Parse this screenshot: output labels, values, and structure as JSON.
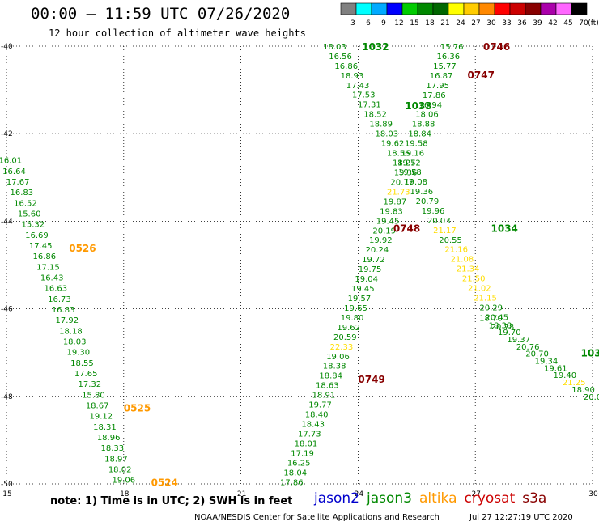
{
  "header": {
    "title": "00:00 – 11:59 UTC 07/26/2020",
    "subtitle": "12 hour collection of altimeter wave heights"
  },
  "footer": {
    "note": "note: 1) Time is in UTC; 2) SWH is in feet",
    "credit": "NOAA/NESDIS Center for Satellite Applications and Research",
    "timestamp": "Jul 27 12:27:19 UTC 2020"
  },
  "satellites": [
    {
      "name": "jason2",
      "color": "#0000cc"
    },
    {
      "name": "jason3",
      "color": "#008800"
    },
    {
      "name": "altika",
      "color": "#ff9900"
    },
    {
      "name": "cryosat",
      "color": "#cc0000"
    },
    {
      "name": "s3a",
      "color": "#880000"
    }
  ],
  "color_scale": {
    "labels": [
      "3",
      "6",
      "9",
      "12",
      "15",
      "18",
      "21",
      "24",
      "27",
      "30",
      "33",
      "36",
      "39",
      "42",
      "45",
      "70"
    ],
    "unit": "(ft)",
    "colors": [
      "#808080",
      "#00ffff",
      "#00aaff",
      "#0000ff",
      "#00cc00",
      "#008800",
      "#006600",
      "#ffff00",
      "#ffcc00",
      "#ff8800",
      "#ff0000",
      "#cc0000",
      "#880000",
      "#aa00aa",
      "#ff66ff",
      "#000000"
    ]
  },
  "chart_data": {
    "type": "scatter",
    "title": "00:00 – 11:59 UTC 07/26/2020",
    "xlabel": "",
    "ylabel": "",
    "xlim": [
      15,
      30
    ],
    "ylim": [
      -50,
      -40
    ],
    "x_ticks": [
      "15",
      "18",
      "21",
      "24",
      "27",
      "30"
    ],
    "y_ticks": [
      "-40",
      "-42",
      "-44",
      "-46",
      "-48",
      "-50"
    ],
    "grid": true,
    "tracks": [
      {
        "name": "track-1",
        "color": "#008800",
        "start": [
          15.1,
          -42.6
        ],
        "end": [
          18.0,
          -49.9
        ],
        "values": [
          "16.01",
          "16.64",
          "17.67",
          "16.83",
          "16.52",
          "15.60",
          "15.32",
          "16.69",
          "17.45",
          "16.86",
          "17.15",
          "16.43",
          "16.63",
          "16.73",
          "16.83",
          "17.92",
          "18.18",
          "18.03",
          "19.30",
          "18.55",
          "17.65",
          "17.32",
          "15.80",
          "18.67",
          "19.12",
          "18.31",
          "18.96",
          "18.33",
          "18.97",
          "18.02",
          "19.06"
        ]
      },
      {
        "name": "track-2",
        "color": "#008800",
        "start": [
          23.4,
          -40.0
        ],
        "end": [
          27.7,
          -46.4
        ],
        "values": [
          "18.03",
          "16.56",
          "16.86",
          "18.93",
          "17.43",
          "17.53",
          "17.31",
          "18.52",
          "18.89",
          "18.03",
          "19.62",
          "18.56",
          "18.25",
          "19.58",
          "19.08",
          "19.36",
          "20.79",
          "19.96",
          "20.03",
          "21.17",
          "20.55",
          "21.16",
          "21.08",
          "21.34",
          "21.50",
          "21.02",
          "21.15",
          "20.29",
          "20.45",
          "20.78"
        ]
      },
      {
        "name": "track-3",
        "color": "#008800",
        "start": [
          27.4,
          -46.2
        ],
        "end": [
          30.0,
          -48.0
        ],
        "values": [
          "18.70",
          "18.38",
          "19.70",
          "19.37",
          "20.76",
          "20.70",
          "19.34",
          "19.61",
          "19.40",
          "21.25",
          "18.90",
          "20.0"
        ]
      },
      {
        "name": "track-4",
        "color": "#008800",
        "start": [
          26.4,
          -40.0
        ],
        "end": [
          22.3,
          -49.95
        ],
        "values": [
          "15.76",
          "16.36",
          "15.77",
          "16.87",
          "17.95",
          "17.86",
          "16.94",
          "18.06",
          "18.88",
          "18.84",
          "19.58",
          "19.16",
          "19.72",
          "19.36",
          "20.77",
          "21.73",
          "19.87",
          "19.83",
          "19.45",
          "20.19",
          "19.92",
          "20.24",
          "19.72",
          "19.75",
          "19.04",
          "19.45",
          "19.57",
          "19.65",
          "19.80",
          "19.62",
          "20.59",
          "22.33",
          "19.06",
          "18.38",
          "18.84",
          "18.63",
          "18.91",
          "19.77",
          "18.40",
          "18.43",
          "17.73",
          "18.01",
          "17.19",
          "16.25",
          "18.04",
          "17.86"
        ]
      }
    ],
    "hour_labels": [
      {
        "label": "0526",
        "x": 16.6,
        "y": -44.6,
        "color": "#ff9900"
      },
      {
        "label": "0525",
        "x": 18.0,
        "y": -48.25,
        "color": "#ff9900"
      },
      {
        "label": "0524",
        "x": 18.7,
        "y": -49.95,
        "color": "#ff9900"
      },
      {
        "label": "1032",
        "x": 24.1,
        "y": -40.0,
        "color": "#008800"
      },
      {
        "label": "1033",
        "x": 25.2,
        "y": -41.35,
        "color": "#008800"
      },
      {
        "label": "1034",
        "x": 27.4,
        "y": -44.15,
        "color": "#008800"
      },
      {
        "label": "103",
        "x": 29.7,
        "y": -47.0,
        "color": "#008800"
      },
      {
        "label": "0746",
        "x": 27.2,
        "y": -40.0,
        "color": "#880000"
      },
      {
        "label": "0747",
        "x": 26.8,
        "y": -40.65,
        "color": "#880000"
      },
      {
        "label": "0748",
        "x": 24.9,
        "y": -44.15,
        "color": "#880000"
      },
      {
        "label": "0749",
        "x": 24.0,
        "y": -47.6,
        "color": "#880000"
      }
    ]
  }
}
